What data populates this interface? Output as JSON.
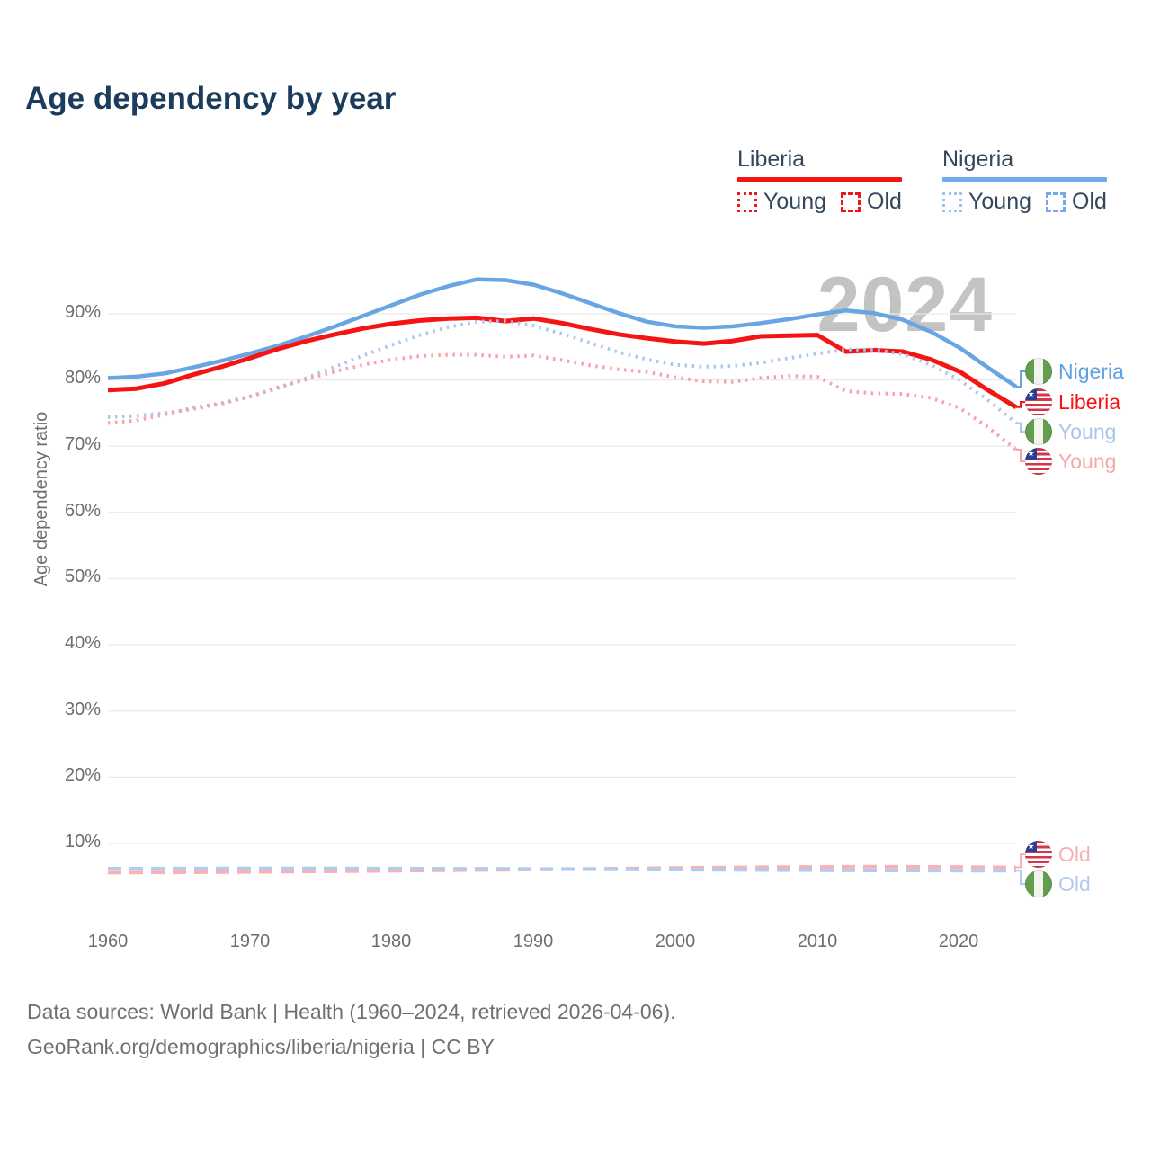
{
  "title": "Age dependency by year",
  "watermark": "2024",
  "legend": {
    "groups": [
      {
        "country": "Liberia",
        "color": "#f51414",
        "items": [
          {
            "label": "Young",
            "style": "dotted",
            "color": "#f51414"
          },
          {
            "label": "Old",
            "style": "dashed",
            "color": "#f51414"
          }
        ]
      },
      {
        "country": "Nigeria",
        "color": "#74a9e4",
        "items": [
          {
            "label": "Young",
            "style": "dotted",
            "color": "#9fc3ec"
          },
          {
            "label": "Old",
            "style": "dashed",
            "color": "#74a9e4"
          }
        ]
      }
    ]
  },
  "y_axis": {
    "title": "Age dependency ratio",
    "ticks": [
      "90%",
      "80%",
      "70%",
      "60%",
      "50%",
      "40%",
      "30%",
      "20%",
      "10%"
    ]
  },
  "x_axis": {
    "ticks": [
      "1960",
      "1970",
      "1980",
      "1990",
      "2000",
      "2010",
      "2020"
    ]
  },
  "right_labels": [
    {
      "text": "Nigeria",
      "flag": "nigeria",
      "color": "#5ea0e4"
    },
    {
      "text": "Liberia",
      "flag": "liberia",
      "color": "#f51414"
    },
    {
      "text": "Young",
      "flag": "nigeria",
      "color": "#a9c6ec"
    },
    {
      "text": "Young",
      "flag": "liberia",
      "color": "#f7a6aa"
    },
    {
      "text": "Old",
      "flag": "liberia",
      "color": "#f8b0b3"
    },
    {
      "text": "Old",
      "flag": "nigeria",
      "color": "#b0ccf0"
    }
  ],
  "footer": {
    "line1": "Data sources: World Bank | Health (1960–2024, retrieved 2026-04-06).",
    "line2": "GeoRank.org/demographics/liberia/nigeria | CC BY"
  },
  "chart_data": {
    "type": "line",
    "title": "Age dependency by year",
    "ylabel": "Age dependency ratio",
    "xlim": [
      1960,
      2024
    ],
    "ylim": [
      0,
      100
    ],
    "y_gridlines": [
      90,
      80,
      70,
      60,
      50,
      40,
      30,
      20,
      10
    ],
    "grid": "horizontal-only",
    "x": [
      1960,
      1962,
      1964,
      1966,
      1968,
      1970,
      1972,
      1974,
      1976,
      1978,
      1980,
      1982,
      1984,
      1986,
      1988,
      1990,
      1992,
      1994,
      1996,
      1998,
      2000,
      2002,
      2004,
      2006,
      2008,
      2010,
      2012,
      2014,
      2016,
      2018,
      2020,
      2022,
      2024
    ],
    "series": [
      {
        "id": "nigeria_total",
        "name": "Nigeria (total)",
        "color": "#6aa5e3",
        "style": "solid",
        "width": 4.5,
        "label_row": 0,
        "values": [
          80.3,
          80.5,
          81.0,
          81.9,
          82.9,
          84.0,
          85.2,
          86.6,
          88.1,
          89.7,
          91.3,
          92.9,
          94.2,
          95.2,
          95.1,
          94.4,
          93.1,
          91.6,
          90.1,
          88.8,
          88.1,
          87.9,
          88.1,
          88.6,
          89.2,
          89.9,
          90.5,
          90.1,
          89.1,
          87.3,
          84.9,
          81.9,
          79.0
        ]
      },
      {
        "id": "liberia_total",
        "name": "Liberia (total)",
        "color": "#f51414",
        "style": "solid",
        "width": 5,
        "label_row": 1,
        "values": [
          78.5,
          78.7,
          79.5,
          80.8,
          82.0,
          83.3,
          84.7,
          85.9,
          86.9,
          87.8,
          88.5,
          89.0,
          89.3,
          89.4,
          88.9,
          89.3,
          88.6,
          87.7,
          86.9,
          86.3,
          85.8,
          85.5,
          85.9,
          86.6,
          86.7,
          86.8,
          84.3,
          84.5,
          84.3,
          83.1,
          81.3,
          78.5,
          75.9
        ]
      },
      {
        "id": "nigeria_young",
        "name": "Nigeria Young",
        "color": "#a9c8ec",
        "style": "dotted",
        "width": 4,
        "label_row": 2,
        "values": [
          74.4,
          74.6,
          75.0,
          75.6,
          76.4,
          77.5,
          78.8,
          80.3,
          82.0,
          83.7,
          85.3,
          86.8,
          88.0,
          88.8,
          88.9,
          88.2,
          87.0,
          85.6,
          84.2,
          83.1,
          82.3,
          82.0,
          82.1,
          82.6,
          83.3,
          84.0,
          84.6,
          84.6,
          83.9,
          82.3,
          80.0,
          77.0,
          73.5
        ]
      },
      {
        "id": "liberia_young",
        "name": "Liberia Young",
        "color": "#f7a2a8",
        "style": "dotted",
        "width": 4,
        "label_row": 3,
        "values": [
          73.5,
          73.9,
          74.8,
          75.8,
          76.5,
          77.5,
          78.9,
          80.1,
          81.3,
          82.3,
          83.1,
          83.6,
          83.8,
          83.8,
          83.5,
          83.7,
          83.0,
          82.2,
          81.6,
          81.2,
          80.4,
          79.8,
          79.7,
          80.3,
          80.6,
          80.5,
          78.3,
          78.0,
          77.9,
          77.3,
          75.8,
          72.9,
          69.5
        ]
      },
      {
        "id": "liberia_old",
        "name": "Liberia Old",
        "color": "#f8b2b6",
        "style": "dashed",
        "width": 4,
        "label_row": 4,
        "values": [
          5.6,
          5.62,
          5.64,
          5.66,
          5.68,
          5.71,
          5.74,
          5.77,
          5.8,
          5.84,
          5.88,
          5.92,
          5.96,
          6.0,
          6.04,
          6.08,
          6.12,
          6.16,
          6.2,
          6.25,
          6.3,
          6.34,
          6.38,
          6.41,
          6.44,
          6.46,
          6.48,
          6.49,
          6.48,
          6.47,
          6.45,
          6.42,
          6.4
        ]
      },
      {
        "id": "nigeria_old",
        "name": "Nigeria Old",
        "color": "#aecdf0",
        "style": "dashed",
        "width": 4,
        "label_row": 5,
        "values": [
          6.2,
          6.2,
          6.21,
          6.21,
          6.22,
          6.22,
          6.22,
          6.22,
          6.22,
          6.21,
          6.21,
          6.2,
          6.19,
          6.18,
          6.17,
          6.16,
          6.14,
          6.12,
          6.1,
          6.08,
          6.06,
          6.04,
          6.02,
          6.0,
          5.98,
          5.96,
          5.94,
          5.93,
          5.92,
          5.91,
          5.9,
          5.89,
          5.88
        ]
      }
    ],
    "legend_position": "top-right",
    "annotations": [
      "2024"
    ]
  }
}
